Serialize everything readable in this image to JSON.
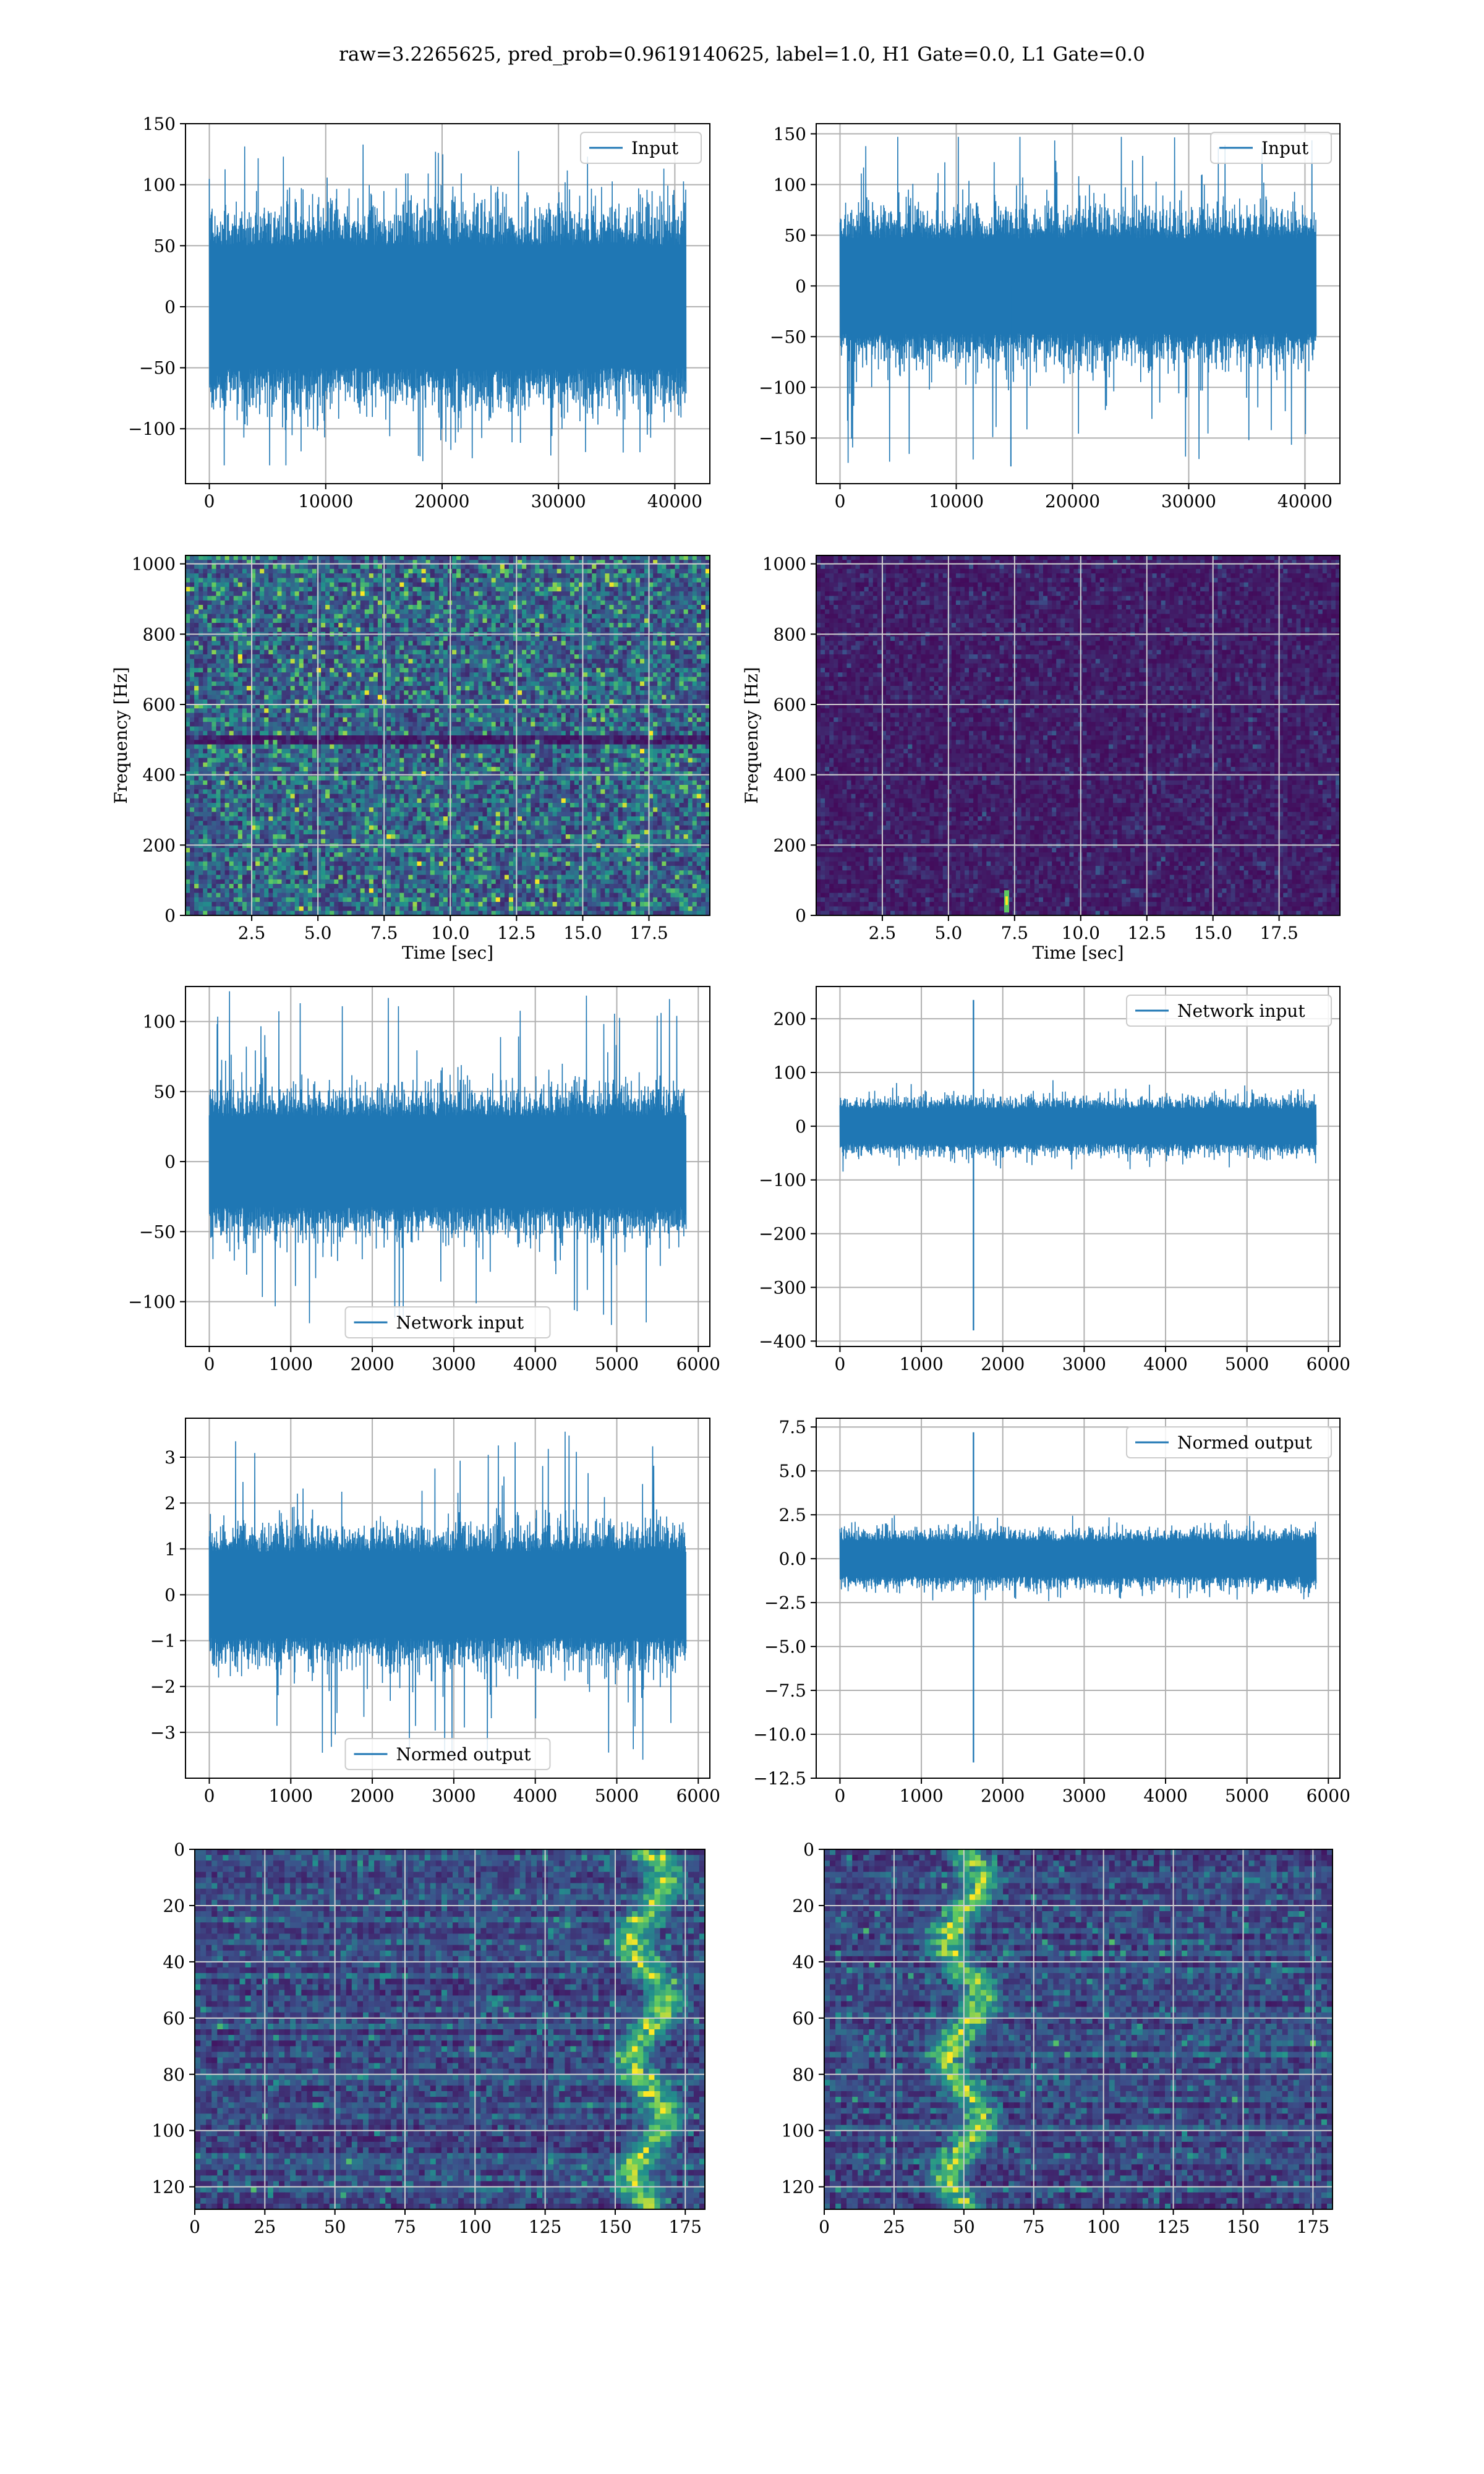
{
  "figure": {
    "title": "raw=3.2265625, pred_prob=0.9619140625, label=1.0, H1 Gate=0.0, L1 Gate=0.0"
  },
  "colors": {
    "line": "#1f77b4",
    "grid": "#b0b0b0",
    "viridis_dark": "#440154",
    "viridis_mid": "#3b528b",
    "viridis_teal": "#21918c",
    "viridis_green": "#5ec962",
    "viridis_yellow": "#fde725"
  },
  "chart_data": [
    {
      "id": "input-left",
      "type": "line",
      "series": [
        {
          "name": "Input",
          "x_range": [
            0,
            40960
          ],
          "amplitude_typical": 70,
          "peak_max": 138,
          "peak_min": -130
        }
      ],
      "xlim": [
        -2048,
        43008
      ],
      "ylim": [
        -145,
        150
      ],
      "xticks": [
        0,
        10000,
        20000,
        30000,
        40000
      ],
      "xticklabels": [
        "0",
        "10000",
        "20000",
        "30000",
        "40000"
      ],
      "yticks": [
        -100,
        -50,
        0,
        50,
        100,
        150
      ],
      "yticklabels": [
        "−100",
        "−50",
        "0",
        "50",
        "100",
        "150"
      ],
      "legend_loc": "upper right",
      "grid": true,
      "xlabel": "",
      "ylabel": ""
    },
    {
      "id": "input-right",
      "type": "line",
      "series": [
        {
          "name": "Input",
          "x_range": [
            0,
            40960
          ],
          "amplitude_typical": 65,
          "peak_max": 147,
          "peak_min": -178,
          "peak_min_x": 14700
        }
      ],
      "xlim": [
        -2048,
        43008
      ],
      "ylim": [
        -195,
        160
      ],
      "xticks": [
        0,
        10000,
        20000,
        30000,
        40000
      ],
      "xticklabels": [
        "0",
        "10000",
        "20000",
        "30000",
        "40000"
      ],
      "yticks": [
        -150,
        -100,
        -50,
        0,
        50,
        100,
        150
      ],
      "yticklabels": [
        "−150",
        "−100",
        "−50",
        "0",
        "50",
        "100",
        "150"
      ],
      "legend_loc": "upper right",
      "grid": true,
      "xlabel": "",
      "ylabel": ""
    },
    {
      "id": "spectrogram-left",
      "type": "heatmap",
      "xlim": [
        0,
        19.8
      ],
      "ylim": [
        0,
        1024
      ],
      "xticks": [
        2.5,
        5.0,
        7.5,
        10.0,
        12.5,
        15.0,
        17.5
      ],
      "xticklabels": [
        "2.5",
        "5.0",
        "7.5",
        "10.0",
        "12.5",
        "15.0",
        "17.5"
      ],
      "yticks": [
        0,
        200,
        400,
        600,
        800,
        1000
      ],
      "yticklabels": [
        "0",
        "200",
        "400",
        "600",
        "800",
        "1000"
      ],
      "xlabel": "Time [sec]",
      "ylabel": "Frequency [Hz]",
      "grid": true,
      "intensity": "noisy",
      "dark_band_hz": 500
    },
    {
      "id": "spectrogram-right",
      "type": "heatmap",
      "xlim": [
        0,
        19.8
      ],
      "ylim": [
        0,
        1024
      ],
      "xticks": [
        2.5,
        5.0,
        7.5,
        10.0,
        12.5,
        15.0,
        17.5
      ],
      "xticklabels": [
        "2.5",
        "5.0",
        "7.5",
        "10.0",
        "12.5",
        "15.0",
        "17.5"
      ],
      "yticks": [
        0,
        200,
        400,
        600,
        800,
        1000
      ],
      "yticklabels": [
        "0",
        "200",
        "400",
        "600",
        "800",
        "1000"
      ],
      "xlabel": "Time [sec]",
      "ylabel": "Frequency [Hz]",
      "grid": true,
      "intensity": "quiet",
      "blob_time": 7.2,
      "blob_freq": 40
    },
    {
      "id": "network-input-left",
      "type": "line",
      "series": [
        {
          "name": "Network input",
          "x_range": [
            0,
            5850
          ],
          "amplitude_typical": 45,
          "peak_max": 122,
          "peak_min": -120
        }
      ],
      "xlim": [
        -292,
        6142
      ],
      "ylim": [
        -132,
        125
      ],
      "xticks": [
        0,
        1000,
        2000,
        3000,
        4000,
        5000,
        6000
      ],
      "xticklabels": [
        "0",
        "1000",
        "2000",
        "3000",
        "4000",
        "5000",
        "6000"
      ],
      "yticks": [
        -100,
        -50,
        0,
        50,
        100
      ],
      "yticklabels": [
        "−100",
        "−50",
        "0",
        "50",
        "100"
      ],
      "legend_loc": "lower center",
      "grid": true,
      "xlabel": "",
      "ylabel": ""
    },
    {
      "id": "network-input-right",
      "type": "line",
      "series": [
        {
          "name": "Network input",
          "x_range": [
            0,
            5850
          ],
          "amplitude_typical": 45,
          "spike_x": 1640,
          "spike_max": 235,
          "spike_min": -380
        }
      ],
      "xlim": [
        -292,
        6142
      ],
      "ylim": [
        -410,
        260
      ],
      "xticks": [
        0,
        1000,
        2000,
        3000,
        4000,
        5000,
        6000
      ],
      "xticklabels": [
        "0",
        "1000",
        "2000",
        "3000",
        "4000",
        "5000",
        "6000"
      ],
      "yticks": [
        -400,
        -300,
        -200,
        -100,
        0,
        100,
        200
      ],
      "yticklabels": [
        "−400",
        "−300",
        "−200",
        "−100",
        "0",
        "100",
        "200"
      ],
      "legend_loc": "upper right",
      "grid": true,
      "xlabel": "",
      "ylabel": ""
    },
    {
      "id": "normed-output-left",
      "type": "line",
      "series": [
        {
          "name": "Normed output",
          "x_range": [
            0,
            5850
          ],
          "amplitude_typical": 1.3,
          "peak_max": 3.6,
          "peak_min": -3.6
        }
      ],
      "xlim": [
        -292,
        6142
      ],
      "ylim": [
        -4.0,
        3.85
      ],
      "xticks": [
        0,
        1000,
        2000,
        3000,
        4000,
        5000,
        6000
      ],
      "xticklabels": [
        "0",
        "1000",
        "2000",
        "3000",
        "4000",
        "5000",
        "6000"
      ],
      "yticks": [
        -3,
        -2,
        -1,
        0,
        1,
        2,
        3
      ],
      "yticklabels": [
        "−3",
        "−2",
        "−1",
        "0",
        "1",
        "2",
        "3"
      ],
      "legend_loc": "lower center",
      "grid": true,
      "xlabel": "",
      "ylabel": ""
    },
    {
      "id": "normed-output-right",
      "type": "line",
      "series": [
        {
          "name": "Normed output",
          "x_range": [
            0,
            5850
          ],
          "amplitude_typical": 1.4,
          "spike_x": 1640,
          "spike_max": 7.2,
          "spike_min": -11.6
        }
      ],
      "xlim": [
        -292,
        6142
      ],
      "ylim": [
        -12.5,
        8.0
      ],
      "xticks": [
        0,
        1000,
        2000,
        3000,
        4000,
        5000,
        6000
      ],
      "xticklabels": [
        "0",
        "1000",
        "2000",
        "3000",
        "4000",
        "5000",
        "6000"
      ],
      "yticks": [
        -12.5,
        -10.0,
        -7.5,
        -5.0,
        -2.5,
        0.0,
        2.5,
        5.0,
        7.5
      ],
      "yticklabels": [
        "−12.5",
        "−10.0",
        "−7.5",
        "−5.0",
        "−2.5",
        "0.0",
        "2.5",
        "5.0",
        "7.5"
      ],
      "legend_loc": "upper right",
      "grid": true,
      "xlabel": "",
      "ylabel": ""
    },
    {
      "id": "feature-map-left",
      "type": "heatmap",
      "xlim": [
        0,
        182
      ],
      "ylim": [
        128,
        0
      ],
      "xticks": [
        0,
        25,
        50,
        75,
        100,
        125,
        150,
        175
      ],
      "xticklabels": [
        "0",
        "25",
        "50",
        "75",
        "100",
        "125",
        "150",
        "175"
      ],
      "yticks": [
        0,
        20,
        40,
        60,
        80,
        100,
        120
      ],
      "yticklabels": [
        "0",
        "20",
        "40",
        "60",
        "80",
        "100",
        "120"
      ],
      "grid": true,
      "bright_column_center": 162,
      "xlabel": "",
      "ylabel": ""
    },
    {
      "id": "feature-map-right",
      "type": "heatmap",
      "xlim": [
        0,
        182
      ],
      "ylim": [
        128,
        0
      ],
      "xticks": [
        0,
        25,
        50,
        75,
        100,
        125,
        150,
        175
      ],
      "xticklabels": [
        "0",
        "25",
        "50",
        "75",
        "100",
        "125",
        "150",
        "175"
      ],
      "yticks": [
        0,
        20,
        40,
        60,
        80,
        100,
        120
      ],
      "yticklabels": [
        "0",
        "20",
        "40",
        "60",
        "80",
        "100",
        "120"
      ],
      "grid": true,
      "bright_column_center": 50,
      "xlabel": "",
      "ylabel": ""
    }
  ]
}
